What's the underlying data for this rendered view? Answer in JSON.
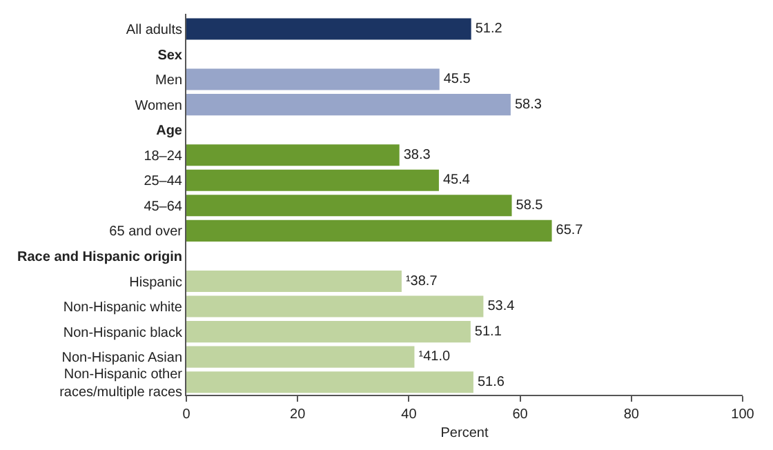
{
  "chart_data": {
    "type": "bar",
    "orientation": "horizontal",
    "xlabel": "Percent",
    "categories": [
      "All adults",
      "Sex",
      "Men",
      "Women",
      "Age",
      "18–24",
      "25–44",
      "45–64",
      "65 and over",
      "Race and Hispanic origin",
      "Hispanic",
      "Non-Hispanic white",
      "Non-Hispanic black",
      "Non-Hispanic Asian",
      "Non-Hispanic other races/multiple races"
    ],
    "values": [
      51.2,
      null,
      45.5,
      58.3,
      null,
      38.3,
      45.4,
      58.5,
      65.7,
      null,
      38.7,
      53.4,
      51.1,
      41.0,
      51.6
    ],
    "colors": [
      "#1b3463",
      null,
      "#97a5c9",
      "#97a5c9",
      null,
      "#6a9a2f",
      "#6a9a2f",
      "#6a9a2f",
      "#6a9a2f",
      null,
      "#c0d4a0",
      "#c0d4a0",
      "#c0d4a0",
      "#c0d4a0",
      "#c0d4a0"
    ],
    "value_labels": [
      "51.2",
      null,
      "45.5",
      "58.3",
      null,
      "38.3",
      "45.4",
      "58.5",
      "65.7",
      null,
      "¹38.7",
      "53.4",
      "51.1",
      "¹41.0",
      "51.6"
    ],
    "xlim": [
      0,
      100
    ],
    "xticks": [
      0,
      20,
      40,
      60,
      80,
      100
    ]
  }
}
